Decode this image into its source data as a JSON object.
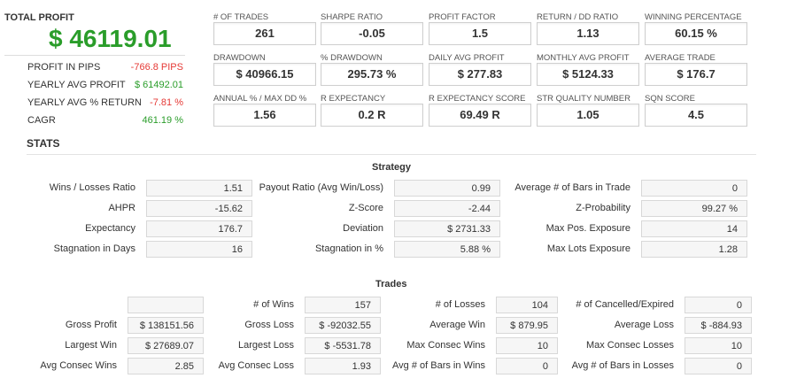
{
  "summary": {
    "title": "TOTAL PROFIT",
    "value": "$ 46119.01",
    "rows": [
      {
        "label": "PROFIT IN PIPS",
        "value": "-766.8 PIPS",
        "tone": "neg"
      },
      {
        "label": "YEARLY AVG PROFIT",
        "value": "$ 61492.01",
        "tone": "pos"
      },
      {
        "label": "YEARLY AVG % RETURN",
        "value": "-7.81 %",
        "tone": "neg"
      },
      {
        "label": "CAGR",
        "value": "461.19 %",
        "tone": "pos"
      }
    ]
  },
  "metrics": [
    [
      {
        "label": "# OF TRADES",
        "value": "261"
      },
      {
        "label": "SHARPE RATIO",
        "value": "-0.05"
      },
      {
        "label": "PROFIT FACTOR",
        "value": "1.5"
      },
      {
        "label": "RETURN / DD RATIO",
        "value": "1.13"
      },
      {
        "label": "WINNING PERCENTAGE",
        "value": "60.15 %"
      }
    ],
    [
      {
        "label": "DRAWDOWN",
        "value": "$ 40966.15"
      },
      {
        "label": "% DRAWDOWN",
        "value": "295.73 %"
      },
      {
        "label": "DAILY AVG PROFIT",
        "value": "$ 277.83"
      },
      {
        "label": "MONTHLY AVG PROFIT",
        "value": "$ 5124.33"
      },
      {
        "label": "AVERAGE TRADE",
        "value": "$ 176.7"
      }
    ],
    [
      {
        "label": "ANNUAL % / MAX DD %",
        "value": "1.56"
      },
      {
        "label": "R EXPECTANCY",
        "value": "0.2 R"
      },
      {
        "label": "R EXPECTANCY SCORE",
        "value": "69.49 R"
      },
      {
        "label": "STR QUALITY NUMBER",
        "value": "1.05"
      },
      {
        "label": "SQN SCORE",
        "value": "4.5"
      }
    ]
  ],
  "stats": {
    "title": "STATS",
    "strategy": {
      "title": "Strategy",
      "rows": [
        [
          {
            "label": "Wins / Losses Ratio",
            "value": "1.51"
          },
          {
            "label": "Payout Ratio (Avg Win/Loss)",
            "value": "0.99"
          },
          {
            "label": "Average # of Bars in Trade",
            "value": "0"
          }
        ],
        [
          {
            "label": "AHPR",
            "value": "-15.62"
          },
          {
            "label": "Z-Score",
            "value": "-2.44"
          },
          {
            "label": "Z-Probability",
            "value": "99.27 %"
          }
        ],
        [
          {
            "label": "Expectancy",
            "value": "176.7"
          },
          {
            "label": "Deviation",
            "value": "$ 2731.33"
          },
          {
            "label": "Max Pos. Exposure",
            "value": "14"
          }
        ],
        [
          {
            "label": "Stagnation in Days",
            "value": "16"
          },
          {
            "label": "Stagnation in %",
            "value": "5.88 %"
          },
          {
            "label": "Max Lots Exposure",
            "value": "1.28"
          }
        ]
      ]
    },
    "trades": {
      "title": "Trades",
      "rows": [
        [
          {
            "label": "",
            "value": ""
          },
          {
            "label": "# of Wins",
            "value": "157"
          },
          {
            "label": "# of Losses",
            "value": "104"
          },
          {
            "label": "# of Cancelled/Expired",
            "value": "0"
          }
        ],
        [
          {
            "label": "Gross Profit",
            "value": "$ 138151.56"
          },
          {
            "label": "Gross Loss",
            "value": "$ -92032.55"
          },
          {
            "label": "Average Win",
            "value": "$ 879.95"
          },
          {
            "label": "Average Loss",
            "value": "$ -884.93"
          }
        ],
        [
          {
            "label": "Largest Win",
            "value": "$ 27689.07"
          },
          {
            "label": "Largest Loss",
            "value": "$ -5531.78"
          },
          {
            "label": "Max Consec Wins",
            "value": "10"
          },
          {
            "label": "Max Consec Losses",
            "value": "10"
          }
        ],
        [
          {
            "label": "Avg Consec Wins",
            "value": "2.85"
          },
          {
            "label": "Avg Consec Loss",
            "value": "1.93"
          },
          {
            "label": "Avg # of Bars in Wins",
            "value": "0"
          },
          {
            "label": "Avg # of Bars in Losses",
            "value": "0"
          }
        ]
      ]
    }
  }
}
